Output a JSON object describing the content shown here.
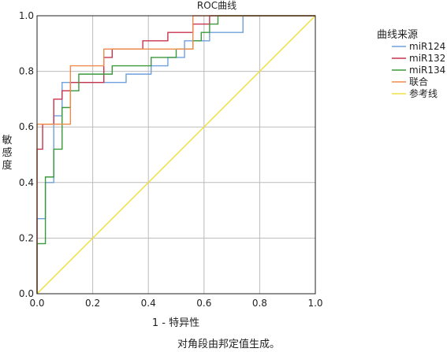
{
  "chart_data": {
    "type": "line",
    "title": "ROC曲线",
    "xlabel": "1 - 特异性",
    "ylabel": "敏感度",
    "footnote": "对角段由邦定值生成。",
    "xlim": [
      0,
      1
    ],
    "ylim": [
      0,
      1
    ],
    "xticks": [
      "0.0",
      "0.2",
      "0.4",
      "0.6",
      "0.8",
      "1.0"
    ],
    "yticks": [
      "0.0",
      "0.2",
      "0.4",
      "0.6",
      "0.8",
      "1.0"
    ],
    "grid": true,
    "legend_title": "曲线来源",
    "legend_position": "right",
    "series": [
      {
        "name": "miR124",
        "color": "#6fa0dc",
        "x": [
          0,
          0,
          0.03,
          0.03,
          0.06,
          0.06,
          0.09,
          0.09,
          0.32,
          0.32,
          0.41,
          0.41,
          0.47,
          0.47,
          0.53,
          0.53,
          0.62,
          0.62,
          0.74,
          0.74,
          1.0
        ],
        "y": [
          0,
          0.27,
          0.27,
          0.4,
          0.4,
          0.64,
          0.64,
          0.76,
          0.76,
          0.79,
          0.79,
          0.82,
          0.82,
          0.85,
          0.85,
          0.91,
          0.91,
          0.94,
          0.94,
          1.0,
          1.0
        ]
      },
      {
        "name": "miR132",
        "color": "#c8334d",
        "x": [
          0,
          0,
          0.02,
          0.02,
          0.03,
          0.03,
          0.06,
          0.06,
          0.09,
          0.09,
          0.12,
          0.12,
          0.24,
          0.24,
          0.27,
          0.27,
          0.38,
          0.38,
          0.47,
          0.47,
          0.56,
          0.56,
          0.62,
          0.62,
          0.65,
          0.65,
          1.0
        ],
        "y": [
          0,
          0.52,
          0.52,
          0.61,
          0.61,
          0.61,
          0.61,
          0.7,
          0.7,
          0.73,
          0.73,
          0.76,
          0.76,
          0.85,
          0.85,
          0.88,
          0.88,
          0.91,
          0.91,
          0.94,
          0.94,
          0.97,
          0.97,
          1.0,
          1.0,
          1.0,
          1.0
        ]
      },
      {
        "name": "miR134",
        "color": "#3a9a3a",
        "x": [
          0,
          0,
          0.03,
          0.03,
          0.06,
          0.06,
          0.09,
          0.09,
          0.12,
          0.12,
          0.15,
          0.15,
          0.27,
          0.27,
          0.41,
          0.41,
          0.5,
          0.5,
          0.56,
          0.56,
          0.59,
          0.59,
          0.62,
          0.62,
          0.65,
          0.65,
          1.0
        ],
        "y": [
          0,
          0.18,
          0.18,
          0.42,
          0.42,
          0.52,
          0.52,
          0.67,
          0.67,
          0.73,
          0.73,
          0.79,
          0.79,
          0.82,
          0.82,
          0.85,
          0.85,
          0.88,
          0.88,
          0.91,
          0.91,
          0.94,
          0.94,
          0.97,
          0.97,
          1.0,
          1.0
        ]
      },
      {
        "name": "联合",
        "color": "#f08a4b",
        "x": [
          0,
          0,
          0.12,
          0.12,
          0.18,
          0.18,
          0.24,
          0.24,
          0.56,
          0.56,
          1.0
        ],
        "y": [
          0,
          0.61,
          0.61,
          0.82,
          0.82,
          0.82,
          0.82,
          0.88,
          0.88,
          1.0,
          1.0
        ]
      },
      {
        "name": "参考线",
        "color": "#f0e040",
        "x": [
          0,
          1
        ],
        "y": [
          0,
          1
        ]
      }
    ]
  }
}
